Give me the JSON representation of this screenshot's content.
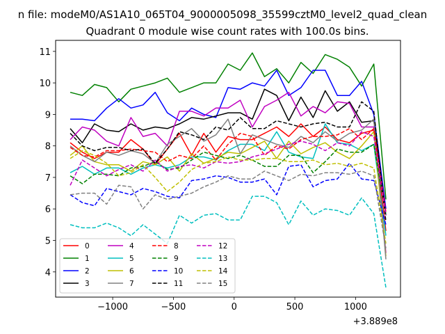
{
  "chart_data": {
    "type": "line",
    "suptitle": "n file: modeM0/AS1A10_065T04_9000005098_35599cztM0_level2_quad_clean",
    "title": "Quadrant 0 module wise count rates with 100.0s bins.",
    "xlabel": "",
    "ylabel": "",
    "x_offset_label": "+3.889e8",
    "xlim": [
      -1470,
      1370
    ],
    "ylim": [
      3.2,
      11.35
    ],
    "xticks": [
      -1000,
      -500,
      0,
      500,
      1000
    ],
    "xtick_labels": [
      "−1000",
      "−500",
      "0",
      "500",
      "1000"
    ],
    "yticks": [
      4,
      5,
      6,
      7,
      8,
      9,
      10,
      11
    ],
    "ytick_labels": [
      "4",
      "5",
      "6",
      "7",
      "8",
      "9",
      "10",
      "11"
    ],
    "legend_position": "lower-left",
    "x": [
      -1350,
      -1250,
      -1150,
      -1050,
      -950,
      -850,
      -750,
      -650,
      -550,
      -450,
      -350,
      -250,
      -150,
      -50,
      50,
      150,
      250,
      350,
      450,
      550,
      650,
      750,
      850,
      950,
      1050,
      1150,
      1250
    ],
    "series": [
      {
        "name": "0",
        "color": "#ff0000",
        "dash": "solid",
        "values": [
          8.1,
          7.8,
          7.6,
          7.8,
          7.8,
          8.2,
          7.9,
          7.4,
          7.9,
          8.4,
          7.7,
          8.4,
          7.8,
          8.3,
          8.2,
          8.2,
          8.4,
          8.6,
          8.3,
          8.7,
          8.3,
          8.6,
          8.2,
          8.1,
          8.4,
          8.5,
          5.3
        ]
      },
      {
        "name": "1",
        "color": "#008000",
        "dash": "solid",
        "values": [
          9.7,
          9.6,
          9.95,
          9.85,
          9.4,
          9.8,
          9.9,
          10.0,
          10.15,
          9.7,
          9.85,
          10.0,
          10.0,
          10.6,
          10.4,
          10.95,
          10.2,
          10.45,
          10.0,
          10.65,
          10.3,
          10.9,
          10.75,
          10.5,
          9.9,
          10.6,
          6.3
        ]
      },
      {
        "name": "2",
        "color": "#0000ff",
        "dash": "solid",
        "values": [
          8.85,
          8.85,
          8.8,
          9.2,
          9.5,
          9.2,
          9.3,
          9.7,
          9.05,
          8.8,
          9.2,
          9.0,
          8.9,
          9.85,
          9.8,
          10.0,
          9.9,
          10.4,
          9.6,
          9.85,
          10.4,
          10.4,
          9.6,
          9.6,
          10.05,
          9.0,
          6.0
        ]
      },
      {
        "name": "3",
        "color": "#000000",
        "dash": "solid",
        "values": [
          8.55,
          8.1,
          8.7,
          8.5,
          8.45,
          8.7,
          8.5,
          8.6,
          8.55,
          8.7,
          8.9,
          8.85,
          8.95,
          9.05,
          9.05,
          8.85,
          9.8,
          9.6,
          8.8,
          9.55,
          8.9,
          9.75,
          9.1,
          9.4,
          8.75,
          8.8,
          5.8
        ]
      },
      {
        "name": "4",
        "color": "#c000c0",
        "dash": "solid",
        "values": [
          8.2,
          8.6,
          8.5,
          8.15,
          8.0,
          8.9,
          8.3,
          8.4,
          8.0,
          9.1,
          9.1,
          8.95,
          9.2,
          9.2,
          9.45,
          8.6,
          9.25,
          9.45,
          9.7,
          8.95,
          9.25,
          9.05,
          9.4,
          9.35,
          8.6,
          8.6,
          4.6
        ]
      },
      {
        "name": "5",
        "color": "#00bfbf",
        "dash": "solid",
        "values": [
          7.15,
          7.35,
          7.1,
          7.3,
          7.3,
          7.1,
          7.3,
          7.4,
          7.3,
          7.4,
          7.65,
          7.65,
          7.55,
          7.85,
          8.05,
          8.05,
          7.85,
          8.45,
          7.8,
          7.65,
          7.6,
          8.7,
          8.1,
          8.05,
          7.85,
          8.05,
          5.15
        ]
      },
      {
        "name": "6",
        "color": "#bfbf00",
        "dash": "solid",
        "values": [
          7.7,
          8.0,
          7.5,
          7.4,
          7.4,
          7.2,
          7.5,
          7.4,
          7.65,
          7.2,
          7.75,
          7.45,
          7.6,
          7.8,
          7.75,
          7.95,
          8.15,
          7.6,
          8.15,
          7.75,
          7.95,
          8.1,
          7.8,
          7.6,
          8.0,
          8.45,
          4.5
        ]
      },
      {
        "name": "7",
        "color": "#808080",
        "dash": "solid",
        "values": [
          8.0,
          7.7,
          7.5,
          7.8,
          7.7,
          7.85,
          7.75,
          7.45,
          8.05,
          8.3,
          8.55,
          8.15,
          8.35,
          8.85,
          7.75,
          8.35,
          8.2,
          8.05,
          7.95,
          8.3,
          8.1,
          8.45,
          8.15,
          8.4,
          8.5,
          8.85,
          4.4
        ]
      },
      {
        "name": "8",
        "color": "#ff0000",
        "dash": "dashed",
        "values": [
          7.95,
          7.7,
          7.65,
          7.85,
          7.85,
          7.9,
          7.85,
          7.8,
          7.5,
          7.7,
          7.6,
          8.0,
          7.55,
          8.05,
          8.4,
          8.3,
          7.7,
          8.0,
          7.9,
          8.2,
          8.3,
          8.3,
          8.35,
          8.55,
          8.2,
          8.55,
          5.9
        ]
      },
      {
        "name": "9",
        "color": "#008000",
        "dash": "dashed",
        "values": [
          7.05,
          6.8,
          7.1,
          7.1,
          7.05,
          7.3,
          7.35,
          7.5,
          7.25,
          7.3,
          7.55,
          7.8,
          7.7,
          7.6,
          7.7,
          7.55,
          7.35,
          7.35,
          7.7,
          7.7,
          7.15,
          7.5,
          7.9,
          7.8,
          7.8,
          8.05,
          5.8
        ]
      },
      {
        "name": "10",
        "color": "#0000ff",
        "dash": "dashed",
        "values": [
          6.45,
          6.2,
          6.1,
          6.65,
          6.55,
          6.45,
          6.65,
          6.55,
          6.4,
          6.35,
          6.9,
          6.95,
          7.05,
          7.0,
          6.85,
          6.85,
          6.95,
          6.45,
          7.35,
          7.4,
          6.7,
          6.9,
          6.95,
          7.45,
          6.95,
          6.9,
          5.5
        ]
      },
      {
        "name": "11",
        "color": "#000000",
        "dash": "dashed",
        "values": [
          8.4,
          8.0,
          7.85,
          7.95,
          7.95,
          7.85,
          7.9,
          7.45,
          7.9,
          8.45,
          8.35,
          8.2,
          8.6,
          8.5,
          8.9,
          8.55,
          8.55,
          8.8,
          8.7,
          8.6,
          8.7,
          8.75,
          8.6,
          8.6,
          9.4,
          9.1,
          5.6
        ]
      },
      {
        "name": "12",
        "color": "#c000c0",
        "dash": "dashed",
        "values": [
          6.75,
          7.55,
          7.3,
          7.05,
          7.25,
          7.4,
          7.2,
          7.55,
          7.2,
          7.35,
          7.4,
          7.3,
          7.5,
          7.45,
          7.5,
          7.65,
          7.75,
          7.9,
          8.05,
          8.15,
          8.05,
          7.85,
          8.1,
          8.0,
          8.45,
          8.3,
          5.8
        ]
      },
      {
        "name": "13",
        "color": "#00bfbf",
        "dash": "dashed",
        "values": [
          5.5,
          5.4,
          5.4,
          5.55,
          5.4,
          5.15,
          5.5,
          5.2,
          4.9,
          5.8,
          5.55,
          5.8,
          5.85,
          5.65,
          5.65,
          6.4,
          6.4,
          6.2,
          5.5,
          6.25,
          5.8,
          6.0,
          5.95,
          5.8,
          6.35,
          5.85,
          3.5
        ]
      },
      {
        "name": "14",
        "color": "#bfbf00",
        "dash": "dashed",
        "values": [
          7.6,
          7.85,
          7.7,
          7.45,
          7.05,
          7.15,
          7.4,
          7.0,
          6.55,
          6.85,
          7.25,
          7.45,
          7.5,
          7.65,
          7.55,
          7.55,
          7.6,
          7.6,
          7.5,
          7.5,
          7.55,
          7.4,
          7.45,
          7.35,
          7.45,
          7.3,
          4.9
        ]
      },
      {
        "name": "15",
        "color": "#808080",
        "dash": "dashed",
        "values": [
          6.45,
          6.5,
          6.5,
          6.15,
          6.75,
          6.7,
          6.0,
          6.45,
          6.3,
          6.4,
          6.5,
          6.7,
          6.85,
          7.05,
          6.95,
          6.95,
          7.2,
          7.05,
          6.9,
          7.1,
          7.05,
          7.15,
          7.15,
          7.1,
          7.2,
          7.05,
          4.75
        ]
      }
    ]
  }
}
